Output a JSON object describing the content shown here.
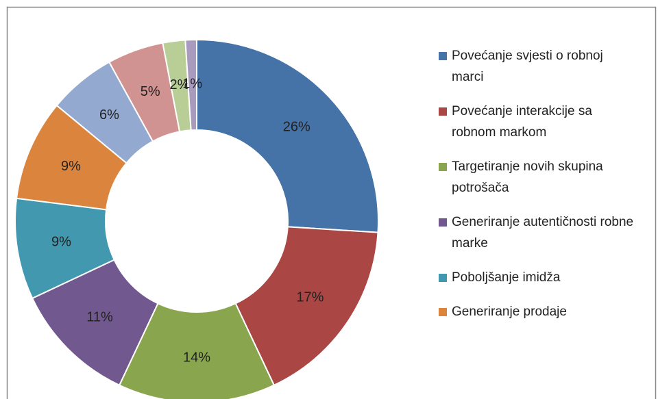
{
  "chart_data": {
    "type": "pie",
    "categories": [
      "Povećanje svjesti o robnoj marci",
      "Povećanje interakcije sa robnom markom",
      "Targetiranje novih skupina potrošača",
      "Generiranje autentičnosti robne marke",
      "Poboljšanje imidža",
      "Generiranje prodaje",
      null,
      null,
      null,
      null
    ],
    "values": [
      26,
      17,
      14,
      11,
      9,
      9,
      6,
      5,
      2,
      1
    ],
    "value_labels": [
      "26%",
      "17%",
      "14%",
      "11%",
      "9%",
      "9%",
      "6%",
      "5%",
      "2%",
      "1%"
    ],
    "colors": [
      "#4572a7",
      "#aa4643",
      "#89a54e",
      "#71588f",
      "#4198af",
      "#db843d",
      "#93a9cf",
      "#d19392",
      "#b9cd96",
      "#a99bbd"
    ],
    "legend": "right"
  }
}
